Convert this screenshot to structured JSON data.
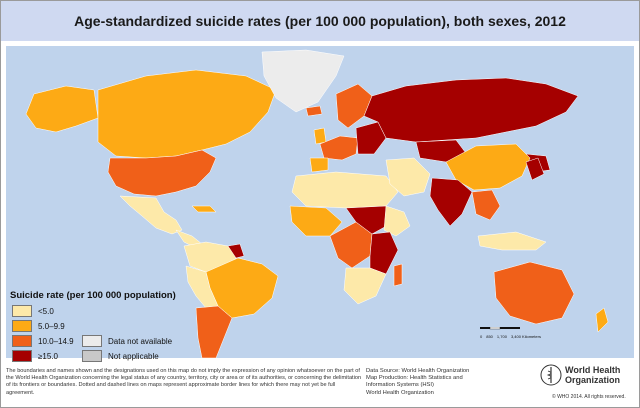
{
  "title": "Age-standardized suicide rates (per 100 000 population), both sexes, 2012",
  "legend": {
    "title": "Suicide rate (per 100 000 population)",
    "items": [
      {
        "label": "<5.0",
        "color": "#fde9a9"
      },
      {
        "label": "5.0–9.9",
        "color": "#fdaa15"
      },
      {
        "label": "10.0–14.9",
        "color": "#f06019"
      },
      {
        "label": "≥15.0",
        "color": "#a50000"
      },
      {
        "label": "Data not available",
        "color": "#ececec"
      },
      {
        "label": "Not applicable",
        "color": "#c8c8c8"
      }
    ]
  },
  "scale": {
    "ticks": [
      "0",
      "850",
      "1,700",
      "3,400 Kilometers"
    ]
  },
  "disclaimer": "The boundaries and names shown and the designations used on this map do not imply the expression of any opinion whatsoever on the part of the World Health Organization concerning the legal status of any country, territory, city or area or of its authorities, or concerning the delimitation of its frontiers or boundaries. Dotted and dashed lines on maps represent approximate border lines for which there may not yet be full agreement.",
  "source": {
    "line1": "Data Source: World Health Organization",
    "line2": "Map Production: Health Statistics and",
    "line3": "Information Systems (HSI)",
    "line4": "World Health Organization"
  },
  "logo": {
    "line1": "World Health",
    "line2": "Organization"
  },
  "copyright": "© WHO 2014. All rights reserved."
}
